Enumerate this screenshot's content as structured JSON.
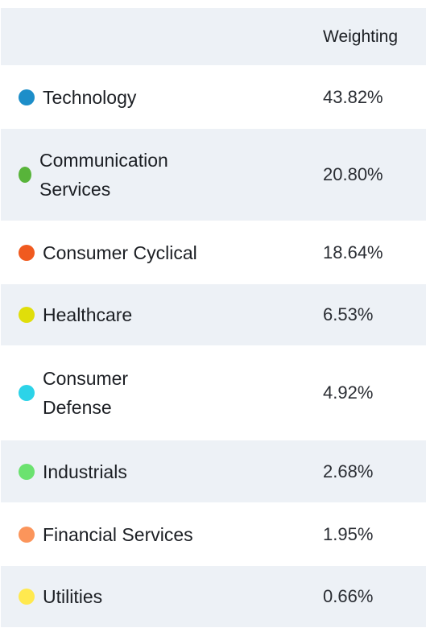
{
  "table": {
    "header": {
      "name_col": "",
      "weight_col": "Weighting"
    },
    "rows": [
      {
        "name": "Technology",
        "weight": "43.82%",
        "color": "#1d8ec9"
      },
      {
        "name": "Communication Services",
        "weight": "20.80%",
        "color": "#58b43a"
      },
      {
        "name": "Consumer Cyclical",
        "weight": "18.64%",
        "color": "#f05a1f"
      },
      {
        "name": "Healthcare",
        "weight": "6.53%",
        "color": "#e0de0a"
      },
      {
        "name": "Consumer Defense",
        "weight": "4.92%",
        "color": "#2cd3e8"
      },
      {
        "name": "Industrials",
        "weight": "2.68%",
        "color": "#6be26f"
      },
      {
        "name": "Financial Services",
        "weight": "1.95%",
        "color": "#fb955b"
      },
      {
        "name": "Utilities",
        "weight": "0.66%",
        "color": "#ffe94f"
      }
    ]
  }
}
